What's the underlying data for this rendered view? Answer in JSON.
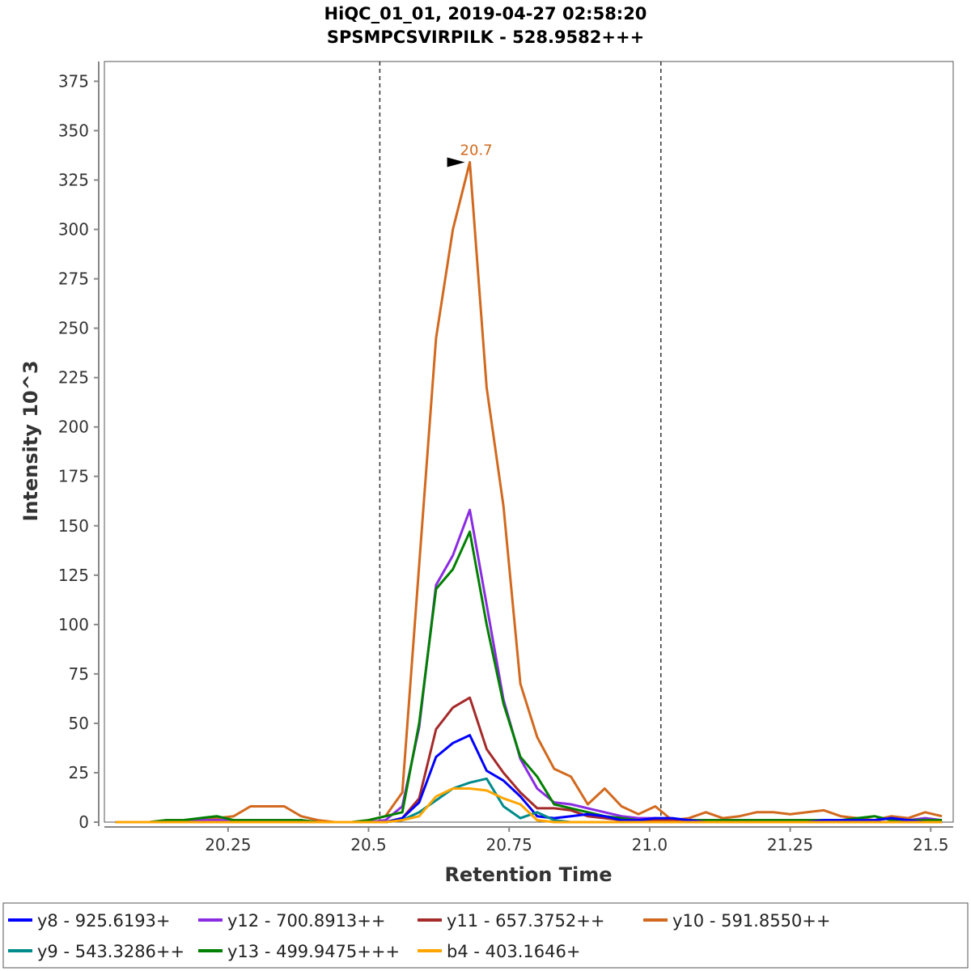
{
  "chart_data": {
    "type": "line",
    "title": "HiQC_01_01, 2019-04-27 02:58:20",
    "subtitle": "SPSMPCSVIRPILK - 528.9582+++",
    "xlabel": "Retention Time",
    "ylabel": "Intensity 10^3",
    "xlim": [
      20.03,
      21.54
    ],
    "ylim": [
      0,
      385
    ],
    "x_ticks": [
      20.25,
      20.5,
      20.75,
      21.0,
      21.25,
      21.5
    ],
    "x_tick_labels": [
      "20.25",
      "20.5",
      "20.75",
      "21.0",
      "21.25",
      "21.5"
    ],
    "y_ticks": [
      0,
      25,
      50,
      75,
      100,
      125,
      150,
      175,
      200,
      225,
      250,
      275,
      300,
      325,
      350,
      375
    ],
    "y_tick_labels": [
      "0",
      "25",
      "50",
      "75",
      "100",
      "125",
      "150",
      "175",
      "200",
      "225",
      "250",
      "275",
      "300",
      "325",
      "350",
      "375"
    ],
    "boundaries": [
      20.52,
      21.02
    ],
    "peak_annotation": {
      "x": 20.68,
      "y": 334,
      "label": "20.7",
      "color": "#d2691e"
    },
    "x": [
      20.05,
      20.08,
      20.11,
      20.14,
      20.17,
      20.2,
      20.23,
      20.26,
      20.29,
      20.32,
      20.35,
      20.38,
      20.41,
      20.44,
      20.47,
      20.5,
      20.53,
      20.56,
      20.59,
      20.62,
      20.65,
      20.68,
      20.71,
      20.74,
      20.77,
      20.8,
      20.83,
      20.86,
      20.89,
      20.92,
      20.95,
      20.98,
      21.01,
      21.04,
      21.07,
      21.1,
      21.13,
      21.16,
      21.19,
      21.22,
      21.25,
      21.28,
      21.31,
      21.34,
      21.37,
      21.4,
      21.43,
      21.46,
      21.49,
      21.52
    ],
    "series": [
      {
        "name": "y10 - 591.8550++",
        "color": "#d2691e",
        "values": [
          0,
          0,
          0,
          1,
          1,
          1,
          2,
          3,
          8,
          8,
          8,
          3,
          1,
          0,
          0,
          1,
          3,
          15,
          130,
          245,
          300,
          334,
          220,
          160,
          70,
          43,
          27,
          23,
          9,
          17,
          8,
          4,
          8,
          1,
          2,
          5,
          2,
          3,
          5,
          5,
          4,
          5,
          6,
          3,
          2,
          1,
          3,
          2,
          5,
          3
        ]
      },
      {
        "name": "y12 - 700.8913++",
        "color": "#8a2be2",
        "values": [
          0,
          0,
          0,
          0,
          0,
          1,
          1,
          1,
          1,
          1,
          1,
          1,
          0,
          0,
          0,
          0,
          1,
          8,
          48,
          120,
          135,
          158,
          110,
          62,
          32,
          17,
          10,
          9,
          7,
          5,
          3,
          2,
          2,
          1,
          1,
          1,
          1,
          1,
          1,
          1,
          1,
          1,
          1,
          1,
          1,
          1,
          2,
          1,
          2,
          1
        ]
      },
      {
        "name": "y13 - 499.9475+++",
        "color": "#008000",
        "values": [
          0,
          0,
          0,
          1,
          1,
          2,
          3,
          1,
          1,
          1,
          1,
          1,
          0,
          0,
          0,
          1,
          3,
          5,
          50,
          118,
          128,
          147,
          100,
          60,
          33,
          23,
          9,
          7,
          5,
          3,
          2,
          1,
          1,
          1,
          1,
          1,
          1,
          1,
          1,
          1,
          1,
          1,
          1,
          1,
          2,
          3,
          1,
          1,
          1,
          1
        ]
      },
      {
        "name": "y11 - 657.3752++",
        "color": "#a52a2a",
        "values": [
          0,
          0,
          0,
          0,
          0,
          0,
          0,
          0,
          0,
          0,
          0,
          0,
          0,
          0,
          0,
          0,
          0,
          2,
          12,
          47,
          58,
          63,
          37,
          25,
          15,
          7,
          7,
          6,
          3,
          2,
          1,
          1,
          1,
          1,
          1,
          0,
          0,
          0,
          0,
          0,
          0,
          0,
          0,
          0,
          0,
          0,
          0,
          0,
          0,
          0
        ]
      },
      {
        "name": "y8 - 925.6193+",
        "color": "#0000ff",
        "values": [
          0,
          0,
          0,
          0,
          0,
          0,
          0,
          0,
          0,
          0,
          0,
          0,
          0,
          0,
          0,
          0,
          0,
          2,
          10,
          33,
          40,
          44,
          26,
          21,
          13,
          3,
          2,
          3,
          4,
          3,
          1,
          1,
          2,
          2,
          1,
          0,
          0,
          0,
          0,
          0,
          0,
          0,
          1,
          1,
          1,
          1,
          2,
          1,
          0,
          0
        ]
      },
      {
        "name": "y9 - 543.3286++",
        "color": "#008b8b",
        "values": [
          0,
          0,
          0,
          0,
          0,
          0,
          0,
          0,
          0,
          0,
          0,
          0,
          0,
          0,
          0,
          0,
          0,
          1,
          5,
          11,
          17,
          20,
          22,
          8,
          2,
          5,
          1,
          0,
          0,
          0,
          0,
          0,
          0,
          0,
          0,
          0,
          0,
          0,
          0,
          0,
          0,
          0,
          0,
          0,
          0,
          0,
          0,
          0,
          0,
          0
        ]
      },
      {
        "name": "b4 - 403.1646+",
        "color": "#ffa500",
        "values": [
          0,
          0,
          0,
          0,
          0,
          0,
          0,
          0,
          0,
          0,
          0,
          0,
          0,
          0,
          0,
          0,
          0,
          1,
          3,
          13,
          17,
          17,
          16,
          12,
          9,
          1,
          0,
          0,
          0,
          0,
          0,
          0,
          0,
          0,
          0,
          0,
          0,
          0,
          0,
          0,
          0,
          0,
          0,
          0,
          0,
          0,
          0,
          0,
          0,
          0
        ]
      }
    ],
    "legend": [
      {
        "label": "y8 - 925.6193+",
        "color": "#0000ff"
      },
      {
        "label": "y12 - 700.8913++",
        "color": "#8a2be2"
      },
      {
        "label": "y11 - 657.3752++",
        "color": "#a52a2a"
      },
      {
        "label": "y10 - 591.8550++",
        "color": "#d2691e"
      },
      {
        "label": "y9 - 543.3286++",
        "color": "#008b8b"
      },
      {
        "label": "y13 - 499.9475+++",
        "color": "#008000"
      },
      {
        "label": "b4 - 403.1646+",
        "color": "#ffa500"
      }
    ]
  }
}
